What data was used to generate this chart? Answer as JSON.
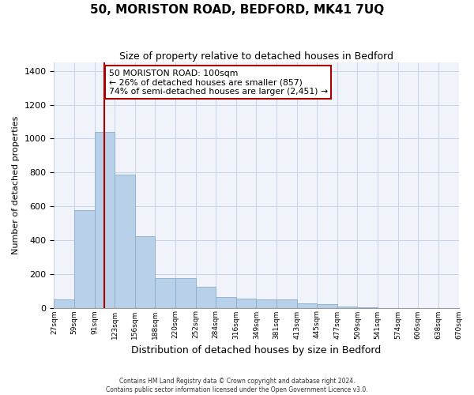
{
  "title": "50, MORISTON ROAD, BEDFORD, MK41 7UQ",
  "subtitle": "Size of property relative to detached houses in Bedford",
  "xlabel": "Distribution of detached houses by size in Bedford",
  "ylabel": "Number of detached properties",
  "bar_color": "#b8d0e8",
  "bar_edge_color": "#8aaece",
  "vline_color": "#aa0000",
  "vline_x": 2,
  "annotation_text": "50 MORISTON ROAD: 100sqm\n← 26% of detached houses are smaller (857)\n74% of semi-detached houses are larger (2,451) →",
  "annotation_box_color": "#ffffff",
  "annotation_box_edge": "#aa0000",
  "bins": [
    "27sqm",
    "59sqm",
    "91sqm",
    "123sqm",
    "156sqm",
    "188sqm",
    "220sqm",
    "252sqm",
    "284sqm",
    "316sqm",
    "349sqm",
    "381sqm",
    "413sqm",
    "445sqm",
    "477sqm",
    "509sqm",
    "541sqm",
    "574sqm",
    "606sqm",
    "638sqm",
    "670sqm"
  ],
  "values": [
    50,
    575,
    1040,
    785,
    425,
    175,
    175,
    125,
    62,
    55,
    50,
    50,
    25,
    20,
    5,
    2,
    0,
    0,
    0,
    0
  ],
  "ylim": [
    0,
    1450
  ],
  "yticks": [
    0,
    200,
    400,
    600,
    800,
    1000,
    1200,
    1400
  ],
  "footer_line1": "Contains HM Land Registry data © Crown copyright and database right 2024.",
  "footer_line2": "Contains public sector information licensed under the Open Government Licence v3.0."
}
